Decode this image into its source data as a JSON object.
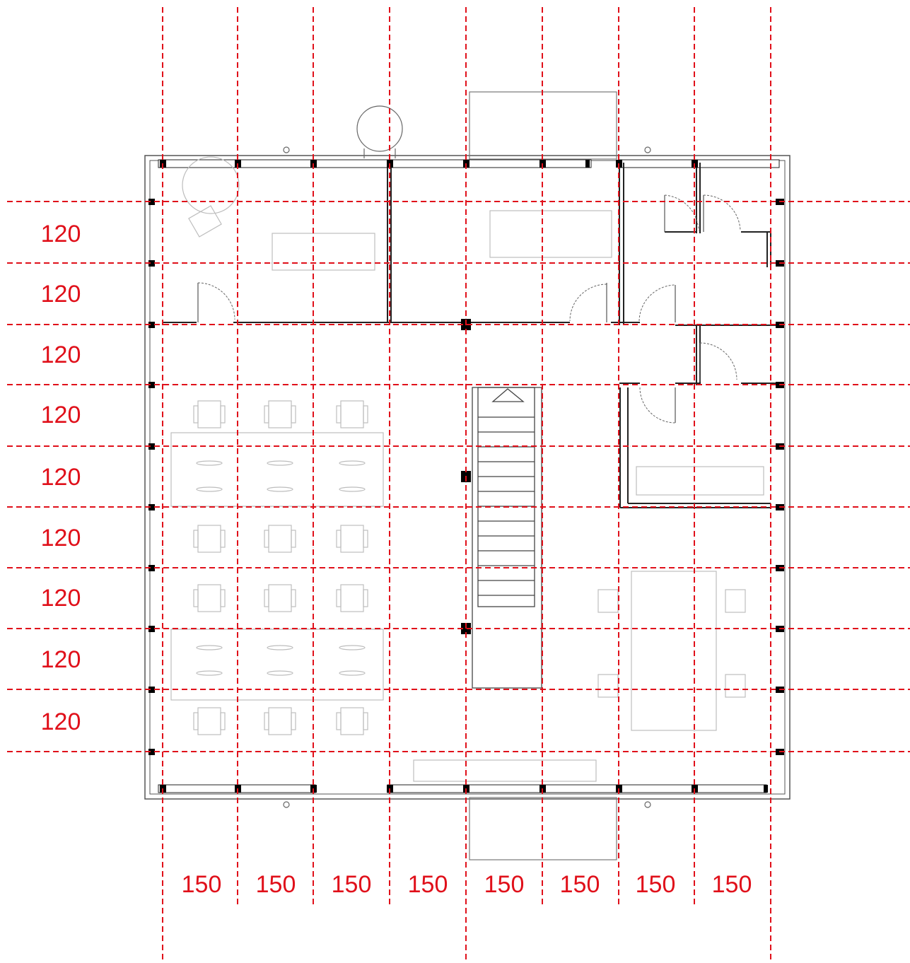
{
  "diagram": {
    "type": "floor-plan-structural-grid",
    "grid_color": "#e0101a",
    "wall_color": "#111111",
    "furniture_color": "#b9b9b9",
    "column_spacing": {
      "labels": [
        "150",
        "150",
        "150",
        "150",
        "150",
        "150",
        "150",
        "150"
      ]
    },
    "row_spacing": {
      "labels": [
        "120",
        "120",
        "120",
        "120",
        "120",
        "120",
        "120",
        "120",
        "120"
      ]
    }
  }
}
